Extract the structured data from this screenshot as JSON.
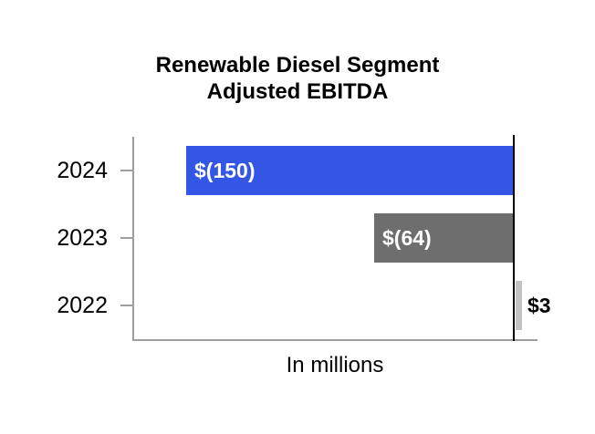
{
  "header": {
    "title_line1": "Renewable Diesel Segment",
    "title_line2": "Adjusted EBITDA"
  },
  "chart_data": {
    "type": "bar",
    "orientation": "horizontal",
    "title": "Renewable Diesel Segment Adjusted EBITDA",
    "xlabel": "In millions",
    "categories": [
      "2024",
      "2023",
      "2022"
    ],
    "values": [
      -150,
      -64,
      3
    ],
    "value_labels": [
      "$(150)",
      "$(64)",
      "$3"
    ],
    "colors": [
      "#3456E4",
      "#6E6E6E",
      "#C2C2C2"
    ],
    "axis_color": "#9E9E9E",
    "zero_line_color": "#000000",
    "axis_range": [
      -174,
      11
    ],
    "grid": false,
    "legend": false
  }
}
